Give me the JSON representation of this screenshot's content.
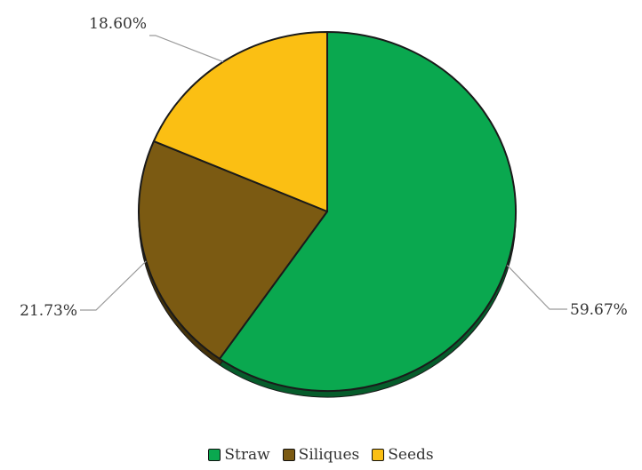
{
  "chart_data": {
    "type": "pie",
    "title": "",
    "categories": [
      "Straw",
      "Siliques",
      "Seeds"
    ],
    "values": [
      59.67,
      21.73,
      18.6
    ],
    "labels": [
      "59.67%",
      "21.73%",
      "18.60%"
    ],
    "colors": [
      "#0aa84f",
      "#7b5a12",
      "#fbbf13"
    ],
    "start": "12 o'clock, clockwise",
    "legend_position": "bottom"
  }
}
